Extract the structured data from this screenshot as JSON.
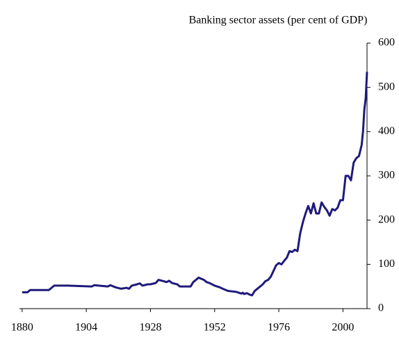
{
  "chart_data": {
    "type": "line",
    "title": "Banking sector assets (per cent of GDP)",
    "x": [
      1880,
      1882,
      1883,
      1890,
      1892,
      1897,
      1906,
      1907,
      1912,
      1913,
      1915,
      1917,
      1919,
      1920,
      1921,
      1923,
      1924,
      1925,
      1927,
      1928,
      1930,
      1931,
      1933,
      1934,
      1935,
      1936,
      1938,
      1939,
      1943,
      1944,
      1946,
      1948,
      1949,
      1950,
      1952,
      1954,
      1955,
      1957,
      1960,
      1961,
      1962,
      1962.5,
      1963,
      1964,
      1965,
      1966,
      1967,
      1969,
      1970,
      1971,
      1972,
      1973,
      1974,
      1975,
      1976,
      1977,
      1978,
      1979,
      1980,
      1981,
      1982,
      1983,
      1984,
      1985,
      1986,
      1987,
      1988,
      1989,
      1990,
      1991,
      1992,
      1993,
      1994,
      1995,
      1996,
      1997,
      1998,
      1999,
      2000,
      2001,
      2002,
      2003,
      2004,
      2005,
      2006,
      2007,
      2007.5,
      2008,
      2008.5,
      2009
    ],
    "series": [
      {
        "name": "Banking sector assets",
        "color": "#1f1a7a",
        "values": [
          37,
          37,
          42,
          42,
          52,
          52,
          50,
          53,
          50,
          53,
          48,
          45,
          47,
          45,
          52,
          55,
          57,
          52,
          55,
          55,
          58,
          65,
          62,
          60,
          63,
          58,
          55,
          50,
          50,
          60,
          70,
          65,
          60,
          58,
          52,
          48,
          45,
          40,
          38,
          36,
          34,
          36,
          33,
          35,
          32,
          30,
          40,
          50,
          55,
          62,
          65,
          72,
          85,
          98,
          103,
          100,
          108,
          115,
          130,
          128,
          133,
          130,
          170,
          195,
          215,
          232,
          215,
          238,
          215,
          215,
          240,
          230,
          222,
          210,
          225,
          222,
          228,
          245,
          245,
          300,
          300,
          290,
          330,
          340,
          345,
          370,
          400,
          450,
          475,
          535
        ]
      }
    ],
    "xlim": [
      1879,
      2009
    ],
    "xticks": [
      1880,
      1904,
      1928,
      1952,
      1976,
      2000
    ],
    "ylim": [
      0,
      600
    ],
    "yticks": [
      0,
      100,
      200,
      300,
      400,
      500,
      600
    ]
  }
}
